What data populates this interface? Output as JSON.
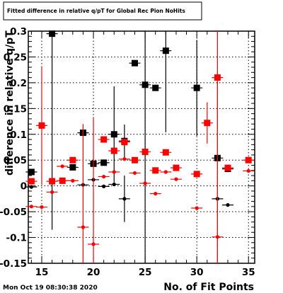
{
  "chart_data": {
    "type": "scatter",
    "title": "Fitted difference in relative q/pT for Global Rec Pion NoHits",
    "xlabel": "No. of Fit Points",
    "ylabel": "difference in relative q/pT",
    "xlim": [
      13.7,
      35.6
    ],
    "ylim": [
      -0.15,
      0.3
    ],
    "grid": true,
    "xticks": [
      15,
      20,
      25,
      30,
      35
    ],
    "xtick_labels": [
      "15",
      "20",
      "25",
      "30",
      "35"
    ],
    "yticks": [
      -0.15,
      -0.1,
      -0.05,
      0,
      0.05,
      0.1,
      0.15,
      0.2,
      0.25,
      0.3
    ],
    "ytick_labels": [
      "-0.15",
      "-0.1",
      "-0.05",
      "0",
      "0.05",
      "0.1",
      "0.15",
      "0.2",
      "0.25",
      "0.3"
    ],
    "series": [
      {
        "color": "#000000",
        "marker": "square",
        "points": [
          {
            "x": 14,
            "y": 0.027,
            "err": 0
          },
          {
            "x": 16,
            "y": 0.295,
            "err": 0.38
          },
          {
            "x": 18,
            "y": 0.036,
            "err": 0
          },
          {
            "x": 19,
            "y": 0.103,
            "err": 0
          },
          {
            "x": 20,
            "y": 0.043,
            "err": 0
          },
          {
            "x": 21,
            "y": 0.045,
            "err": 0
          },
          {
            "x": 22,
            "y": 0.1,
            "err": 0.093
          },
          {
            "x": 23,
            "y": 0.087,
            "err": 0.032
          },
          {
            "x": 24,
            "y": 0.238,
            "err": 0
          },
          {
            "x": 25,
            "y": 0.196,
            "err": 0.42
          },
          {
            "x": 26,
            "y": 0.19,
            "err": 0
          },
          {
            "x": 27,
            "y": 0.262,
            "err": 0.158
          },
          {
            "x": 30,
            "y": 0.19,
            "err": 0.093
          },
          {
            "x": 32,
            "y": 0.054,
            "err": 0
          },
          {
            "x": 33,
            "y": 0.033,
            "err": 0
          }
        ]
      },
      {
        "color": "#000000",
        "marker": "dot",
        "points": [
          {
            "x": 14,
            "y": -0.002,
            "err": 0
          },
          {
            "x": 19,
            "y": 0.002,
            "err": 0
          },
          {
            "x": 20,
            "y": 0.012,
            "err": 0
          },
          {
            "x": 21,
            "y": -0.001,
            "err": 0
          },
          {
            "x": 22,
            "y": 0.003,
            "err": 0
          },
          {
            "x": 23,
            "y": -0.025,
            "err": 0.045
          },
          {
            "x": 32,
            "y": -0.025,
            "err": 0
          },
          {
            "x": 33,
            "y": -0.037,
            "err": 0
          }
        ]
      },
      {
        "color": "#ff0000",
        "marker": "square",
        "points": [
          {
            "x": 14,
            "y": 0.009,
            "err": 0
          },
          {
            "x": 15,
            "y": 0.117,
            "err": 0.115
          },
          {
            "x": 16,
            "y": 0.009,
            "err": 0
          },
          {
            "x": 17,
            "y": 0.01,
            "err": 0
          },
          {
            "x": 18,
            "y": 0.05,
            "err": 0
          },
          {
            "x": 21,
            "y": 0.09,
            "err": 0
          },
          {
            "x": 22,
            "y": 0.068,
            "err": 0
          },
          {
            "x": 23,
            "y": 0.085,
            "err": 0
          },
          {
            "x": 24,
            "y": 0.05,
            "err": 0
          },
          {
            "x": 25,
            "y": 0.066,
            "err": 0
          },
          {
            "x": 26,
            "y": 0.03,
            "err": 0
          },
          {
            "x": 27,
            "y": 0.065,
            "err": 0
          },
          {
            "x": 28,
            "y": 0.035,
            "err": 0
          },
          {
            "x": 30,
            "y": 0.023,
            "err": 0
          },
          {
            "x": 31,
            "y": 0.122,
            "err": 0.04
          },
          {
            "x": 32,
            "y": 0.21,
            "err": 0.4
          },
          {
            "x": 33,
            "y": 0.035,
            "err": 0
          },
          {
            "x": 35,
            "y": 0.05,
            "err": 0
          }
        ]
      },
      {
        "color": "#ff0000",
        "marker": "dot",
        "points": [
          {
            "x": 14,
            "y": -0.04,
            "err": 0
          },
          {
            "x": 15,
            "y": -0.041,
            "err": 0
          },
          {
            "x": 16,
            "y": -0.012,
            "err": 0
          },
          {
            "x": 17,
            "y": 0.038,
            "err": 0
          },
          {
            "x": 18,
            "y": 0.01,
            "err": 0
          },
          {
            "x": 19,
            "y": -0.08,
            "err": 0.2
          },
          {
            "x": 20,
            "y": -0.113,
            "err": 0.245
          },
          {
            "x": 21,
            "y": 0.018,
            "err": 0
          },
          {
            "x": 22,
            "y": 0.027,
            "err": 0
          },
          {
            "x": 23,
            "y": 0.052,
            "err": 0
          },
          {
            "x": 24,
            "y": 0.025,
            "err": 0
          },
          {
            "x": 25,
            "y": 0.005,
            "err": 0
          },
          {
            "x": 26,
            "y": -0.015,
            "err": 0
          },
          {
            "x": 27,
            "y": 0.027,
            "err": 0
          },
          {
            "x": 28,
            "y": 0.013,
            "err": 0
          },
          {
            "x": 30,
            "y": -0.043,
            "err": 0
          },
          {
            "x": 32,
            "y": -0.099,
            "err": 0.32
          },
          {
            "x": 35,
            "y": 0.029,
            "err": 0
          }
        ]
      }
    ]
  },
  "footer": {
    "timestamp": "Mon Oct 19 08:30:38 2020"
  }
}
